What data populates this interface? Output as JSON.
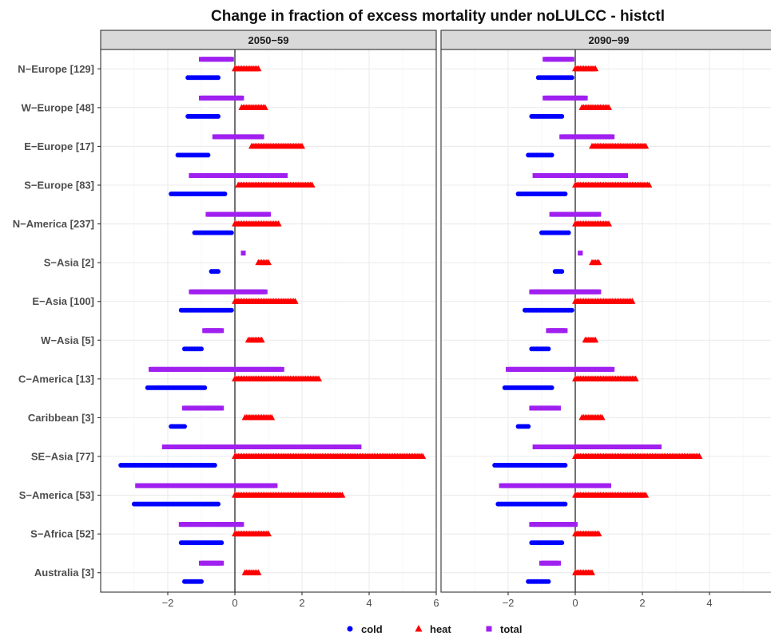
{
  "chart_data": {
    "type": "scatter",
    "title": "Change in fraction of excess mortality under noLULCC - histctl",
    "xlabel": "",
    "ylabel": "",
    "xlim": [
      -4,
      6
    ],
    "x_ticks": [
      -2,
      0,
      2,
      4,
      6
    ],
    "x_tick_labels": [
      "−2",
      "0",
      "2",
      "4",
      "6"
    ],
    "grid": true,
    "legend_position": "bottom",
    "colors": {
      "cold": "#0000ff",
      "heat": "#ff0000",
      "total": "#a020f0"
    },
    "legend": [
      {
        "key": "cold",
        "label": "cold",
        "shape": "circle"
      },
      {
        "key": "heat",
        "label": "heat",
        "shape": "triangle"
      },
      {
        "key": "total",
        "label": "total",
        "shape": "square"
      }
    ],
    "regions": [
      "N−Europe [129]",
      "W−Europe [48]",
      "E−Europe [17]",
      "S−Europe [83]",
      "N−America [237]",
      "S−Asia [2]",
      "E−Asia [100]",
      "W−Asia [5]",
      "C−America [13]",
      "Caribbean [3]",
      "SE−Asia [77]",
      "S−America [53]",
      "S−Africa [52]",
      "Australia [3]"
    ],
    "panels": [
      {
        "label": "2050−59",
        "ranges": {
          "total": [
            [
              -1.0,
              -0.1
            ],
            [
              -1.0,
              0.2
            ],
            [
              -0.6,
              0.8
            ],
            [
              -1.3,
              1.5
            ],
            [
              -0.8,
              1.0
            ],
            [
              0.25,
              0.25
            ],
            [
              -1.3,
              0.9
            ],
            [
              -0.9,
              -0.4
            ],
            [
              -2.5,
              1.4
            ],
            [
              -1.5,
              -0.4
            ],
            [
              -2.1,
              3.7
            ],
            [
              -2.9,
              1.2
            ],
            [
              -1.6,
              0.2
            ],
            [
              -1.0,
              -0.4
            ]
          ],
          "heat": [
            [
              0.0,
              0.7
            ],
            [
              0.2,
              0.9
            ],
            [
              0.5,
              2.0
            ],
            [
              0.1,
              2.3
            ],
            [
              0.0,
              1.3
            ],
            [
              0.7,
              1.0
            ],
            [
              0.0,
              1.8
            ],
            [
              0.4,
              0.8
            ],
            [
              0.0,
              2.5
            ],
            [
              0.3,
              1.1
            ],
            [
              0.0,
              5.6
            ],
            [
              0.0,
              3.2
            ],
            [
              0.0,
              1.0
            ],
            [
              0.3,
              0.7
            ]
          ],
          "cold": [
            [
              -1.4,
              -0.5
            ],
            [
              -1.4,
              -0.5
            ],
            [
              -1.7,
              -0.8
            ],
            [
              -1.9,
              -0.3
            ],
            [
              -1.2,
              -0.1
            ],
            [
              -0.7,
              -0.5
            ],
            [
              -1.6,
              -0.1
            ],
            [
              -1.5,
              -1.0
            ],
            [
              -2.6,
              -0.9
            ],
            [
              -1.9,
              -1.5
            ],
            [
              -3.4,
              -0.6
            ],
            [
              -3.0,
              -0.5
            ],
            [
              -1.6,
              -0.4
            ],
            [
              -1.5,
              -1.0
            ]
          ]
        }
      },
      {
        "label": "2090−99",
        "ranges": {
          "total": [
            [
              -0.9,
              -0.1
            ],
            [
              -0.9,
              0.3
            ],
            [
              -0.4,
              1.1
            ],
            [
              -1.2,
              1.5
            ],
            [
              -0.7,
              0.7
            ],
            [
              0.15,
              0.15
            ],
            [
              -1.3,
              0.7
            ],
            [
              -0.8,
              -0.3
            ],
            [
              -2.0,
              1.1
            ],
            [
              -1.3,
              -0.5
            ],
            [
              -1.2,
              2.5
            ],
            [
              -2.2,
              1.0
            ],
            [
              -1.3,
              0.0
            ],
            [
              -1.0,
              -0.5
            ]
          ],
          "heat": [
            [
              0.0,
              0.6
            ],
            [
              0.2,
              1.0
            ],
            [
              0.5,
              2.1
            ],
            [
              0.0,
              2.2
            ],
            [
              0.0,
              1.0
            ],
            [
              0.5,
              0.7
            ],
            [
              0.0,
              1.7
            ],
            [
              0.3,
              0.6
            ],
            [
              0.0,
              1.8
            ],
            [
              0.2,
              0.8
            ],
            [
              0.0,
              3.7
            ],
            [
              0.0,
              2.1
            ],
            [
              0.0,
              0.7
            ],
            [
              0.0,
              0.5
            ]
          ],
          "cold": [
            [
              -1.1,
              -0.1
            ],
            [
              -1.3,
              -0.4
            ],
            [
              -1.4,
              -0.7
            ],
            [
              -1.7,
              -0.3
            ],
            [
              -1.0,
              -0.2
            ],
            [
              -0.6,
              -0.4
            ],
            [
              -1.5,
              -0.1
            ],
            [
              -1.3,
              -0.8
            ],
            [
              -2.1,
              -0.7
            ],
            [
              -1.7,
              -1.4
            ],
            [
              -2.4,
              -0.3
            ],
            [
              -2.3,
              -0.3
            ],
            [
              -1.3,
              -0.4
            ],
            [
              -1.4,
              -0.8
            ]
          ]
        }
      }
    ]
  }
}
